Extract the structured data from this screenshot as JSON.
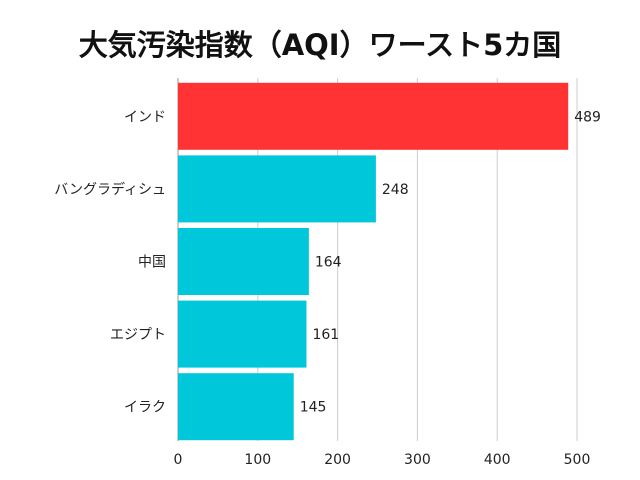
{
  "chart_data": {
    "type": "bar",
    "orientation": "horizontal",
    "title": "大気汚染指数（AQI）ワースト5カ国",
    "categories": [
      "インド",
      "バングラディシュ",
      "中国",
      "エジプト",
      "イラク"
    ],
    "values": [
      489,
      248,
      164,
      161,
      145
    ],
    "xlim": [
      0,
      500
    ],
    "xticks": [
      0,
      100,
      200,
      300,
      400,
      500
    ],
    "xlabel": "",
    "ylabel": "",
    "grid": true,
    "colors": [
      "#ff3333",
      "#00c8da",
      "#00c8da",
      "#00c8da",
      "#00c8da"
    ],
    "gridline_color": "#cccccc"
  }
}
